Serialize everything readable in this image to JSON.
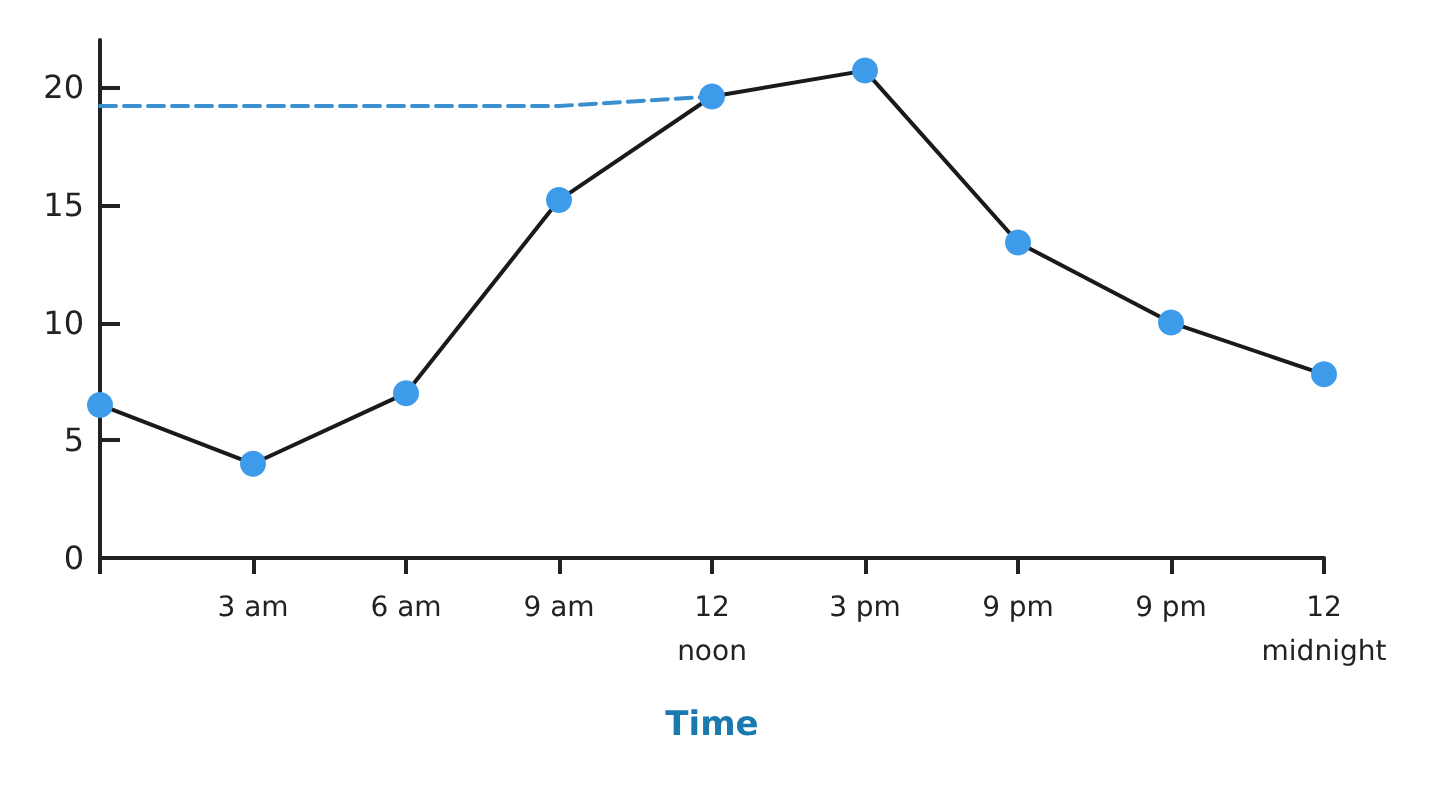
{
  "chart_data": {
    "type": "line",
    "xlabel": "Time",
    "categories": [
      null,
      "3 am",
      "6 am",
      "9 am",
      "12\nnoon",
      "3 pm",
      "9 pm",
      "9 pm",
      "12\nmidnight"
    ],
    "series": [
      {
        "color": "#1a1a1a",
        "colors": [
          "#3d9be9",
          "#3d9be9",
          "#3d9be9",
          "#3d9be9",
          "#3d9be9",
          "#3d9be9",
          "#3d9be9",
          "#3d9be9",
          "#3d9be9"
        ],
        "marker": "circle",
        "values": [
          6.5,
          4.0,
          7.0,
          15.2,
          19.6,
          20.7,
          13.4,
          10.0,
          7.8
        ]
      },
      {
        "color": "#3a8fd0",
        "line_style": "dashed",
        "marker": "none",
        "values": [
          19.2,
          19.2,
          19.2,
          19.2,
          19.6,
          null,
          null,
          null,
          null
        ]
      }
    ],
    "ylim": [
      0,
      22
    ],
    "yticks": [
      0,
      5,
      10,
      15,
      20
    ],
    "grid": false
  }
}
